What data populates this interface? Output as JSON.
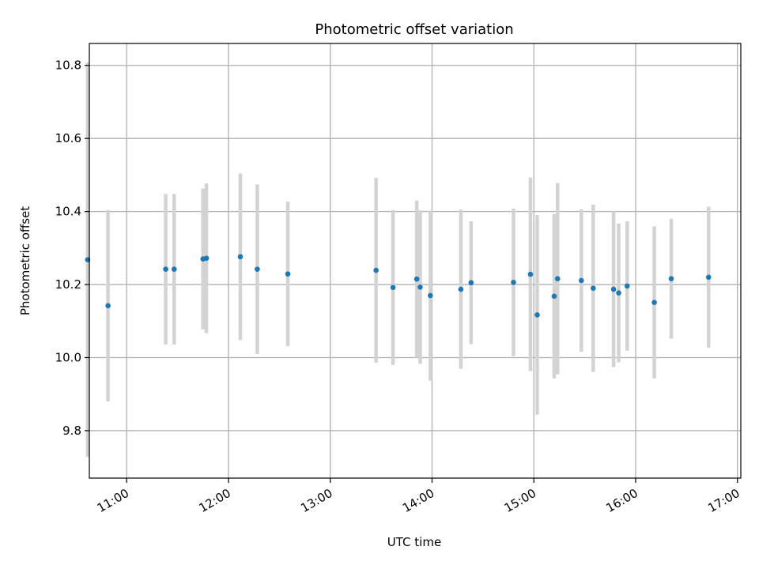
{
  "chart_data": {
    "type": "scatter",
    "title": "Photometric offset variation",
    "xlabel": "UTC time",
    "ylabel": "Photometric offset",
    "x_ticks": [
      "11:00",
      "12:00",
      "13:00",
      "14:00",
      "15:00",
      "16:00",
      "17:00"
    ],
    "x_tick_hours": [
      11,
      12,
      13,
      14,
      15,
      16,
      17
    ],
    "y_ticks": [
      "9.8",
      "10.0",
      "10.2",
      "10.4",
      "10.6",
      "10.8"
    ],
    "y_tick_values": [
      9.8,
      10.0,
      10.2,
      10.4,
      10.6,
      10.8
    ],
    "xlim": [
      "10:38",
      "17:02"
    ],
    "ylim": [
      9.67,
      10.86
    ],
    "grid": true,
    "point_color": "#1f77b4",
    "errorbar_color": "#d3d3d3",
    "points": [
      {
        "x": "10:37",
        "y": 10.268,
        "err": 0.54
      },
      {
        "x": "10:49",
        "y": 10.142,
        "err": 0.262
      },
      {
        "x": "11:23",
        "y": 10.242,
        "err": 0.206
      },
      {
        "x": "11:28",
        "y": 10.242,
        "err": 0.206
      },
      {
        "x": "11:45",
        "y": 10.27,
        "err": 0.193
      },
      {
        "x": "11:47",
        "y": 10.272,
        "err": 0.205
      },
      {
        "x": "12:07",
        "y": 10.276,
        "err": 0.228
      },
      {
        "x": "12:17",
        "y": 10.242,
        "err": 0.232
      },
      {
        "x": "12:35",
        "y": 10.229,
        "err": 0.198
      },
      {
        "x": "13:27",
        "y": 10.239,
        "err": 0.253
      },
      {
        "x": "13:37",
        "y": 10.192,
        "err": 0.212
      },
      {
        "x": "13:51",
        "y": 10.215,
        "err": 0.215
      },
      {
        "x": "13:53",
        "y": 10.193,
        "err": 0.21
      },
      {
        "x": "13:59",
        "y": 10.17,
        "err": 0.233
      },
      {
        "x": "14:17",
        "y": 10.187,
        "err": 0.218
      },
      {
        "x": "14:23",
        "y": 10.205,
        "err": 0.168
      },
      {
        "x": "14:48",
        "y": 10.206,
        "err": 0.202
      },
      {
        "x": "14:58",
        "y": 10.228,
        "err": 0.265
      },
      {
        "x": "15:02",
        "y": 10.117,
        "err": 0.273
      },
      {
        "x": "15:12",
        "y": 10.168,
        "err": 0.225
      },
      {
        "x": "15:14",
        "y": 10.216,
        "err": 0.262
      },
      {
        "x": "15:28",
        "y": 10.211,
        "err": 0.195
      },
      {
        "x": "15:35",
        "y": 10.19,
        "err": 0.229
      },
      {
        "x": "15:47",
        "y": 10.187,
        "err": 0.213
      },
      {
        "x": "15:50",
        "y": 10.177,
        "err": 0.19
      },
      {
        "x": "15:55",
        "y": 10.196,
        "err": 0.177
      },
      {
        "x": "16:11",
        "y": 10.151,
        "err": 0.208
      },
      {
        "x": "16:21",
        "y": 10.216,
        "err": 0.164
      },
      {
        "x": "16:43",
        "y": 10.22,
        "err": 0.193
      }
    ]
  }
}
